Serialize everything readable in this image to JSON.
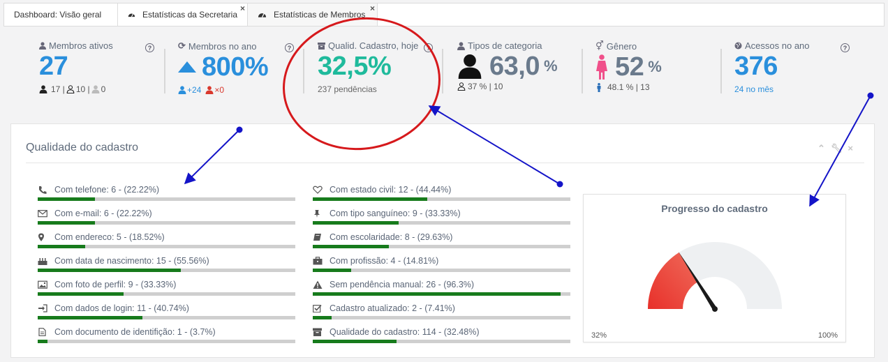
{
  "tabs": [
    {
      "label": "Dashboard: Visão geral",
      "icon": "none",
      "closable": false
    },
    {
      "label": "Estatísticas da Secretaria",
      "icon": "dashboard-icon",
      "closable": true
    },
    {
      "label": "Estatísticas de Membros",
      "icon": "dashboard-icon",
      "closable": true,
      "active": true
    }
  ],
  "stats": {
    "membros_ativos": {
      "label": "Membros ativos",
      "value": "27",
      "sub_a": "17 |",
      "sub_b": "10 |",
      "sub_c": "0"
    },
    "membros_no_ano": {
      "label": "Membros no ano",
      "value": "800%",
      "added": "+24",
      "removed": "×0"
    },
    "qualid_cadastro": {
      "label": "Qualid. Cadastro, hoje",
      "value": "32,5%",
      "sub": "237 pendências"
    },
    "tipos_categoria": {
      "label": "Tipos de categoria",
      "value": "63,0",
      "unit": "%",
      "sub": "37 % | 10"
    },
    "genero": {
      "label": "Gênero",
      "value": "52",
      "unit": "%",
      "sub": "48.1 % | 13"
    },
    "acessos_no_ano": {
      "label": "Acessos no ano",
      "value": "376",
      "sub": "24 no mês"
    }
  },
  "panel": {
    "title": "Qualidade do cadastro",
    "left_metrics": [
      {
        "label": "Com telefone: 6 - (22.22%)",
        "pct": 22.22,
        "icon": "phone-icon"
      },
      {
        "label": "Com e-mail: 6 - (22.22%)",
        "pct": 22.22,
        "icon": "envelope-icon"
      },
      {
        "label": "Com endereco: 5 - (18.52%)",
        "pct": 18.52,
        "icon": "map-marker-icon"
      },
      {
        "label": "Com data de nascimento: 15 - (55.56%)",
        "pct": 55.56,
        "icon": "birthday-cake-icon"
      },
      {
        "label": "Com foto de perfil: 9 - (33.33%)",
        "pct": 33.33,
        "icon": "picture-icon"
      },
      {
        "label": "Com dados de login: 11 - (40.74%)",
        "pct": 40.74,
        "icon": "sign-in-icon"
      },
      {
        "label": "Com documento de identifição: 1 - (3.7%)",
        "pct": 3.7,
        "icon": "document-icon"
      }
    ],
    "right_metrics": [
      {
        "label": "Com estado civil: 12 - (44.44%)",
        "pct": 44.44,
        "icon": "heart-icon"
      },
      {
        "label": "Com tipo sanguíneo: 9 - (33.33%)",
        "pct": 33.33,
        "icon": "pin-icon"
      },
      {
        "label": "Com escolaridade: 8 - (29.63%)",
        "pct": 29.63,
        "icon": "book-icon"
      },
      {
        "label": "Com profissão: 4 - (14.81%)",
        "pct": 14.81,
        "icon": "briefcase-icon"
      },
      {
        "label": "Sem pendência manual: 26 - (96.3%)",
        "pct": 96.3,
        "icon": "warning-icon"
      },
      {
        "label": "Cadastro atualizado: 2 - (7.41%)",
        "pct": 7.41,
        "icon": "check-square-icon"
      },
      {
        "label": "Qualidade do cadastro: 114 - (32.48%)",
        "pct": 32.48,
        "icon": "archive-icon"
      }
    ],
    "gauge": {
      "title": "Progresso do cadastro",
      "value_pct": 32,
      "min_label": "32%",
      "max_label": "100%"
    }
  },
  "colors": {
    "accent_blue": "#2a8fdc",
    "teal": "#1fba9c",
    "bar_green": "#177b1c",
    "annotation_red": "#d6191c",
    "annotation_blue": "#1414c8"
  }
}
